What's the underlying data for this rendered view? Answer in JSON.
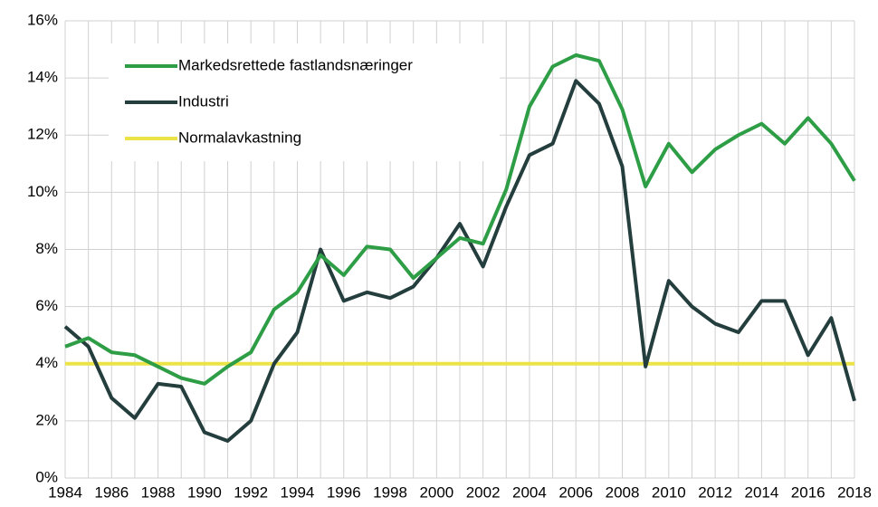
{
  "chart_data": {
    "type": "line",
    "categories": [
      "1984",
      null,
      "1986",
      null,
      "1988",
      null,
      "1990",
      null,
      "1992",
      null,
      "1994",
      null,
      "1996",
      null,
      "1998",
      null,
      "2000",
      null,
      "2002",
      null,
      "2004",
      null,
      "2006",
      null,
      "2008",
      null,
      "2010",
      null,
      "2012",
      null,
      "2014",
      null,
      "2016",
      null,
      "2018"
    ],
    "series": [
      {
        "name": "Markedsrettede fastlandsnæringer",
        "color": "#2e9e46",
        "values": [
          4.6,
          4.9,
          4.4,
          4.3,
          3.9,
          3.5,
          3.3,
          3.9,
          4.4,
          5.9,
          6.5,
          7.8,
          7.1,
          8.1,
          8.0,
          7.0,
          7.7,
          8.4,
          8.2,
          10.1,
          13.0,
          14.4,
          14.8,
          14.6,
          12.9,
          10.2,
          11.7,
          10.7,
          11.5,
          12.0,
          12.4,
          11.7,
          12.6,
          11.7,
          10.4
        ]
      },
      {
        "name": "Industri",
        "color": "#243d3d",
        "values": [
          5.3,
          4.6,
          2.8,
          2.1,
          3.3,
          3.2,
          1.6,
          1.3,
          2.0,
          4.0,
          5.1,
          8.0,
          6.2,
          6.5,
          6.3,
          6.7,
          7.7,
          8.9,
          7.4,
          9.5,
          11.3,
          11.7,
          13.9,
          13.1,
          10.9,
          3.9,
          6.9,
          6.0,
          5.4,
          5.1,
          6.2,
          6.2,
          4.3,
          5.6,
          2.7
        ]
      },
      {
        "name": "Normalavkastning",
        "color": "#ebe348",
        "values": [
          4,
          4,
          4,
          4,
          4,
          4,
          4,
          4,
          4,
          4,
          4,
          4,
          4,
          4,
          4,
          4,
          4,
          4,
          4,
          4,
          4,
          4,
          4,
          4,
          4,
          4,
          4,
          4,
          4,
          4,
          4,
          4,
          4,
          4,
          4
        ]
      }
    ],
    "ylim": [
      0,
      16
    ],
    "yticks": [
      {
        "value": 0,
        "label": "0%"
      },
      {
        "value": 2,
        "label": "2%"
      },
      {
        "value": 4,
        "label": "4%"
      },
      {
        "value": 6,
        "label": "6%"
      },
      {
        "value": 8,
        "label": "8%"
      },
      {
        "value": 10,
        "label": "10%"
      },
      {
        "value": 12,
        "label": "12%"
      },
      {
        "value": 14,
        "label": "14%"
      },
      {
        "value": 16,
        "label": "16%"
      }
    ],
    "grid": true,
    "legend": "upper left"
  }
}
